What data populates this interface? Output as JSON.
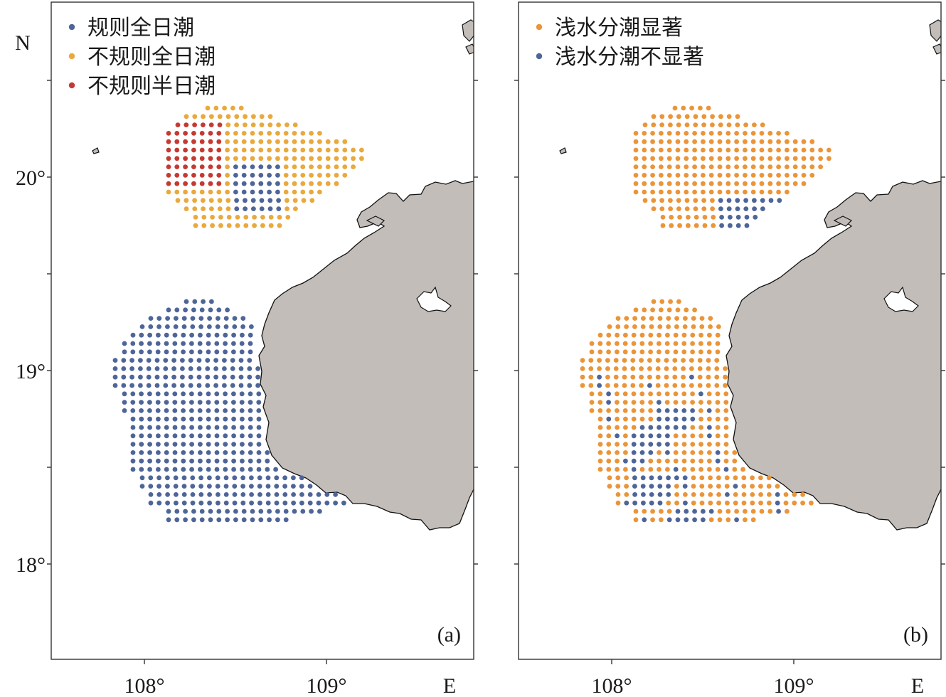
{
  "axes": {
    "lon_ticks": [
      {
        "value": 108,
        "label": "108°"
      },
      {
        "value": 109,
        "label": "109°"
      }
    ],
    "lat_ticks": [
      {
        "value": 20,
        "label": "20°"
      },
      {
        "value": 19,
        "label": "19°"
      },
      {
        "value": 18,
        "label": "18°"
      }
    ],
    "lon_range": [
      107.5,
      109.8
    ],
    "lat_range": [
      17.5,
      20.8
    ],
    "north_label": "N",
    "east_label": "E"
  },
  "colors": {
    "land": "#c2bdb9",
    "coast": "#111111",
    "frame": "#333333"
  },
  "panels": [
    {
      "id": "a",
      "label": "(a)",
      "legend": [
        {
          "key": "diurnal",
          "label": "规则全日潮",
          "color": "#4e6598"
        },
        {
          "key": "irregular_diurnal",
          "label": "不规则全日潮",
          "color": "#e9a93d"
        },
        {
          "key": "irregular_semidiurnal",
          "label": "不规则半日潮",
          "color": "#c43a32"
        }
      ]
    },
    {
      "id": "b",
      "label": "(b)",
      "legend": [
        {
          "key": "significant",
          "label": "浅水分潮显著",
          "color": "#ea9539"
        },
        {
          "key": "not_significant",
          "label": "浅水分潮不显著",
          "color": "#4e6598"
        }
      ]
    }
  ]
}
